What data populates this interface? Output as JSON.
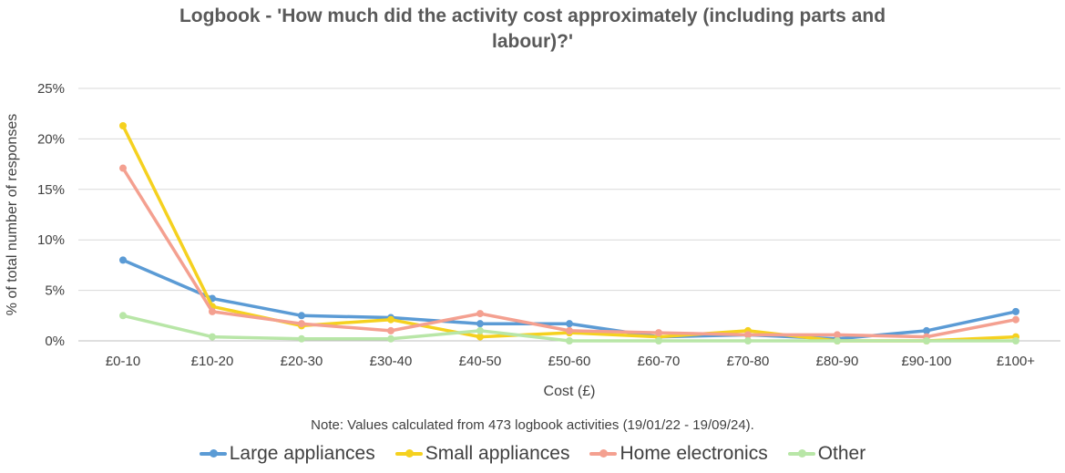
{
  "chart_data": {
    "type": "line",
    "title": "Logbook - 'How much did the activity cost approximately (including parts and labour)?'",
    "title_lines": [
      "Logbook - 'How much did the activity cost approximately (including parts and",
      "labour)?'"
    ],
    "xlabel": "Cost (£)",
    "ylabel": "% of total number of responses",
    "ylim": [
      0,
      25
    ],
    "yticks": [
      0,
      5,
      10,
      15,
      20,
      25
    ],
    "ytick_labels": [
      "0%",
      "5%",
      "10%",
      "15%",
      "20%",
      "25%"
    ],
    "categories": [
      "£0-10",
      "£10-20",
      "£20-30",
      "£30-40",
      "£40-50",
      "£50-60",
      "£60-70",
      "£70-80",
      "£80-90",
      "£90-100",
      "£100+"
    ],
    "series": [
      {
        "name": "Large appliances",
        "color": "#5B9BD5",
        "values": [
          8.0,
          4.2,
          2.5,
          2.3,
          1.7,
          1.7,
          0.4,
          0.6,
          0.2,
          1.0,
          2.9
        ]
      },
      {
        "name": "Small appliances",
        "color": "#F5D11F",
        "values": [
          21.3,
          3.4,
          1.5,
          2.1,
          0.4,
          0.8,
          0.4,
          1.0,
          0.0,
          0.0,
          0.4
        ]
      },
      {
        "name": "Home electronics",
        "color": "#F4A090",
        "values": [
          17.1,
          2.9,
          1.7,
          1.0,
          2.7,
          1.0,
          0.8,
          0.6,
          0.6,
          0.4,
          2.1
        ]
      },
      {
        "name": "Other",
        "color": "#B8E6A7",
        "values": [
          2.5,
          0.4,
          0.2,
          0.2,
          1.0,
          0.0,
          0.0,
          0.0,
          0.0,
          0.0,
          0.0
        ]
      }
    ],
    "grid": true,
    "legend_position": "bottom"
  },
  "note": "Note: Values calculated from 473 logbook activities (19/01/22 - 19/09/24)."
}
